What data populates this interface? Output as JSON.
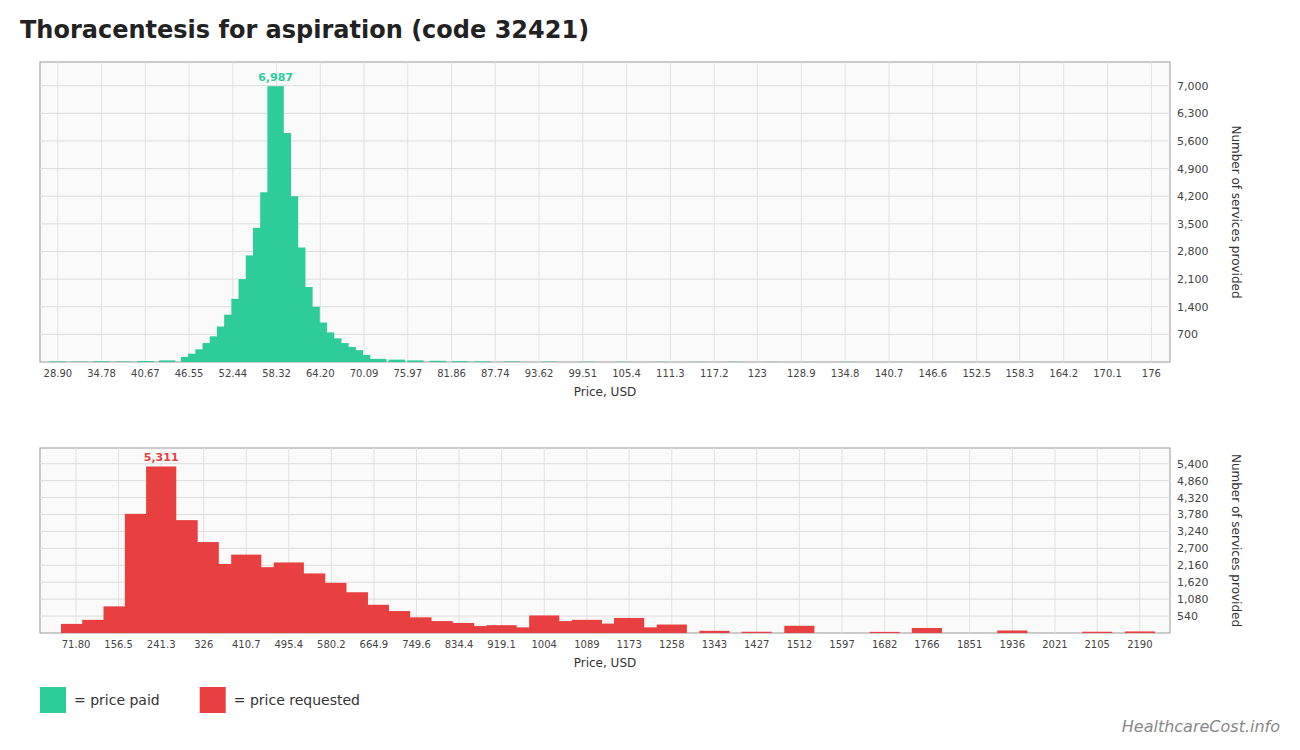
{
  "chart_data": [
    {
      "type": "bar",
      "title": "Thoracentesis for aspiration (code 32421)",
      "x_label": "Price, USD",
      "y_label": "Number of services provided",
      "x": [
        28.9,
        31.84,
        34.78,
        37.72,
        40.67,
        43.61,
        46.55,
        47.52,
        48.49,
        49.46,
        50.43,
        51.4,
        52.37,
        53.34,
        54.31,
        55.28,
        56.25,
        57.22,
        58.19,
        59.16,
        60.13,
        61.1,
        62.07,
        63.04,
        64.01,
        64.98,
        65.95,
        66.92,
        67.89,
        68.86,
        69.83,
        72.0,
        74.5,
        77.0,
        80.0,
        83.0,
        86.0,
        90.0,
        95.0,
        100.0,
        105.0,
        110.0,
        115.0,
        120.0,
        125.0,
        130.0,
        135.0,
        142.0,
        149.0,
        160.0,
        170.0
      ],
      "series": [
        {
          "name": "= price paid",
          "color": "#2ecc9a",
          "values": [
            15,
            8,
            18,
            12,
            25,
            40,
            130,
            210,
            320,
            480,
            650,
            900,
            1200,
            1600,
            2100,
            2700,
            3400,
            4300,
            6987,
            5800,
            4200,
            2900,
            1900,
            1400,
            1000,
            750,
            600,
            480,
            380,
            300,
            180,
            80,
            60,
            40,
            30,
            22,
            16,
            12,
            8,
            6,
            5,
            4,
            3,
            4,
            3,
            2,
            3,
            2,
            2,
            1,
            1
          ]
        }
      ],
      "xlim": [
        26.5,
        178.5
      ],
      "xticks": [
        {
          "value": 28.9,
          "label": "28.90"
        },
        34.78,
        40.67,
        46.55,
        52.44,
        58.32,
        {
          "value": 64.2,
          "label": "64.20"
        },
        70.09,
        75.97,
        81.86,
        87.74,
        93.62,
        99.51,
        105.4,
        111.3,
        117.2,
        123,
        128.9,
        134.8,
        140.7,
        146.6,
        152.5,
        158.3,
        164.2,
        170.1,
        176
      ],
      "ylim": [
        0,
        7600
      ],
      "yticks": [
        700,
        {
          "value": 1400,
          "label": "1,400"
        },
        {
          "value": 2100,
          "label": "2,100"
        },
        {
          "value": 2800,
          "label": "2,800"
        },
        {
          "value": 3500,
          "label": "3,500"
        },
        {
          "value": 4200,
          "label": "4,200"
        },
        {
          "value": 4900,
          "label": "4,900"
        },
        {
          "value": 5600,
          "label": "5,600"
        },
        {
          "value": 6300,
          "label": "6,300"
        },
        {
          "value": 7000,
          "label": "7,000"
        }
      ],
      "grid": true,
      "legend": "lower left",
      "annotations": [
        {
          "text": "6,987",
          "x": 58.19,
          "y": 6987
        }
      ]
    },
    {
      "type": "bar",
      "x_label": "Price, USD",
      "y_label": "Number of services provided",
      "x": [
        71.8,
        114.0,
        156.5,
        199.0,
        241.3,
        284.0,
        326.0,
        368.0,
        410.7,
        453.0,
        495.4,
        538.0,
        580.2,
        623.0,
        664.9,
        707.0,
        749.6,
        792.0,
        834.4,
        877.0,
        919.1,
        962.0,
        1004,
        1047,
        1089,
        1131,
        1173,
        1216,
        1258,
        1343,
        1427,
        1512,
        1682,
        1766,
        1936,
        2105,
        2190
      ],
      "series": [
        {
          "name": "= price requested",
          "color": "#e84040",
          "values": [
            290,
            420,
            850,
            3800,
            5311,
            3600,
            2900,
            2200,
            2500,
            2100,
            2250,
            1900,
            1600,
            1300,
            900,
            700,
            500,
            380,
            320,
            220,
            250,
            180,
            560,
            380,
            420,
            300,
            480,
            180,
            270,
            70,
            40,
            230,
            35,
            160,
            80,
            40,
            50
          ]
        }
      ],
      "xlim": [
        0,
        2250
      ],
      "xticks": [
        {
          "value": 71.8,
          "label": "71.80"
        },
        156.5,
        241.3,
        326,
        410.7,
        495.4,
        580.2,
        664.9,
        749.6,
        834.4,
        919.1,
        1004,
        1089,
        1173,
        1258,
        1343,
        1427,
        1512,
        1597,
        1682,
        1766,
        1851,
        1936,
        2021,
        2105,
        2190
      ],
      "ylim": [
        0,
        5900
      ],
      "yticks": [
        540,
        {
          "value": 1080,
          "label": "1,080"
        },
        {
          "value": 1620,
          "label": "1,620"
        },
        {
          "value": 2160,
          "label": "2,160"
        },
        {
          "value": 2700,
          "label": "2,700"
        },
        {
          "value": 3240,
          "label": "3,240"
        },
        {
          "value": 3780,
          "label": "3,780"
        },
        {
          "value": 4320,
          "label": "4,320"
        },
        {
          "value": 4860,
          "label": "4,860"
        },
        {
          "value": 5400,
          "label": "5,400"
        }
      ],
      "grid": true,
      "legend": "lower left",
      "annotations": [
        {
          "text": "5,311",
          "x": 241.3,
          "y": 5311
        },
        {
          "text": "HealthcareCost.info"
        }
      ]
    }
  ]
}
